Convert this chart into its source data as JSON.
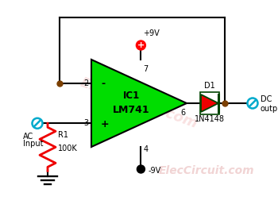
{
  "bg_color": "#ffffff",
  "wire_color": "#000000",
  "opamp_fill": "#00dd00",
  "opamp_edge": "#000000",
  "diode_fill": "#ee0000",
  "diode_edge": "#004400",
  "resistor_color": "#ee0000",
  "node_color": "#7B3F00",
  "cyan_node": "#00aacc",
  "plus_supply_label": "+9V",
  "minus_supply_label": "-9V",
  "ic_label1": "IC1",
  "ic_label2": "LM741",
  "diode_label_top": "D1",
  "diode_label_bot": "1N4148",
  "resistor_label1": "R1",
  "resistor_label2": "100K",
  "ac_label1": "AC",
  "ac_label2": "Input",
  "dc_label1": "DC",
  "dc_label2": "output",
  "watermark": "ElecCircuit.com",
  "pin2_label": "2",
  "pin3_label": "3",
  "pin4_label": "4",
  "pin6_label": "6",
  "pin7_label": "7",
  "minus_label": "-",
  "plus_label": "+"
}
